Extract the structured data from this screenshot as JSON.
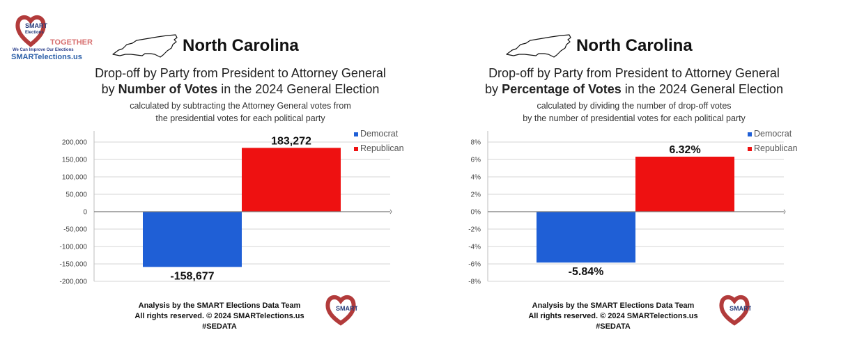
{
  "branding": {
    "logo_text": "SMART Elections",
    "together": "TOGETHER",
    "tagline": "We Can Improve Our Elections",
    "url": "SMARTelections.us"
  },
  "colors": {
    "democrat": "#1f5fd6",
    "republican": "#ee1111",
    "grid": "#d6d6d6",
    "axis": "#7a7a7a"
  },
  "panels": [
    {
      "state": "North Carolina",
      "title_line1": "Drop-off by Party from President to Attorney General",
      "title_pre": "by ",
      "title_bold": "Number of Votes",
      "title_post": " in the 2024 General Election",
      "subtitle_line1": "calculated by subtracting the Attorney General votes from",
      "subtitle_line2": "the presidential votes for each political party",
      "footer_line1": "Analysis by the SMART Elections Data Team",
      "footer_line2": "All rights reserved. © 2024 SMARTelections.us",
      "footer_line3": "#SEDATA"
    },
    {
      "state": "North Carolina",
      "title_line1": "Drop-off by Party from President to Attorney General",
      "title_pre": "by ",
      "title_bold": "Percentage of Votes",
      "title_post": " in the 2024 General Election",
      "subtitle_line1": "calculated by dividing the number of drop-off votes",
      "subtitle_line2": "by the number of presidential votes for each political party",
      "footer_line1": "Analysis by the SMART Elections Data Team",
      "footer_line2": "All rights reserved. © 2024 SMARTelections.us",
      "footer_line3": "#SEDATA"
    }
  ],
  "chart_data": [
    {
      "type": "bar",
      "series": [
        {
          "name": "Democrat",
          "values": [
            -158677
          ],
          "label": "-158,677"
        },
        {
          "name": "Republican",
          "values": [
            183272
          ],
          "label": "183,272"
        }
      ],
      "ylim": [
        -200000,
        200000
      ],
      "yticks": [
        200000,
        150000,
        100000,
        50000,
        0,
        -50000,
        -100000,
        -150000,
        -200000
      ],
      "ytick_labels": [
        "200,000",
        "150,000",
        "100,000",
        "50,000",
        "0",
        "-50,000",
        "-100,000",
        "-150,000",
        "-200,000"
      ],
      "grid": true,
      "legend": "top-right"
    },
    {
      "type": "bar",
      "series": [
        {
          "name": "Democrat",
          "values": [
            -5.84
          ],
          "label": "-5.84%"
        },
        {
          "name": "Republican",
          "values": [
            6.32
          ],
          "label": "6.32%"
        }
      ],
      "ylim": [
        -8,
        8
      ],
      "yticks": [
        8,
        6,
        4,
        2,
        0,
        -2,
        -4,
        -6,
        -8
      ],
      "ytick_labels": [
        "8%",
        "6%",
        "4%",
        "2%",
        "0%",
        "-2%",
        "-4%",
        "-6%",
        "-8%"
      ],
      "grid": true,
      "legend": "top-right"
    }
  ]
}
